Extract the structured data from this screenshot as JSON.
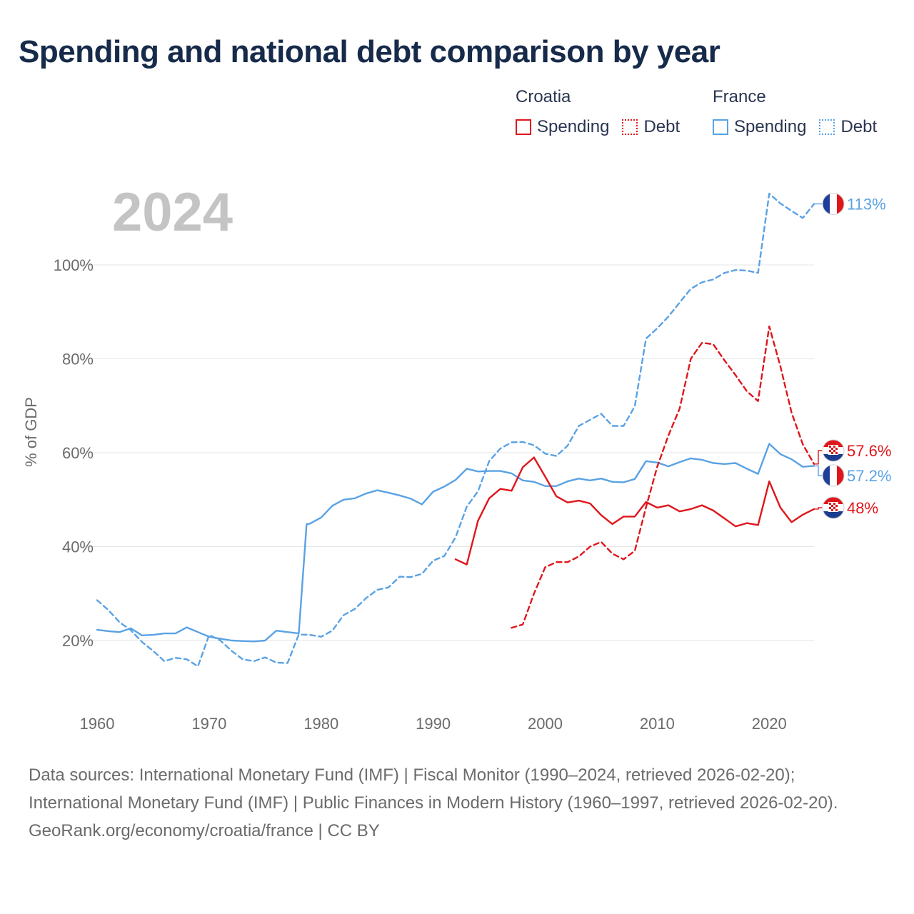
{
  "title": "Spending and national debt comparison by year",
  "legend": {
    "groups": [
      {
        "country": "Croatia",
        "spending_label": "Spending",
        "debt_label": "Debt"
      },
      {
        "country": "France",
        "spending_label": "Spending",
        "debt_label": "Debt"
      }
    ]
  },
  "year_label": "2024",
  "colors": {
    "croatia": "#e0161b",
    "france": "#5aa2e4",
    "grid": "#e6e6e6",
    "axis_text": "#6b6b6b",
    "year_watermark": "#c4c4c4",
    "title": "#162a4a"
  },
  "footer": {
    "sources": "Data sources: International Monetary Fund (IMF) | Fiscal Monitor (1990–2024, retrieved 2026-02-20); International Monetary Fund (IMF) | Public Finances in Modern History (1960–1997, retrieved 2026-02-20).",
    "credit": "GeoRank.org/economy/croatia/france | CC BY"
  },
  "chart_data": {
    "type": "line",
    "title": "Spending and national debt comparison by year",
    "xlabel": "",
    "ylabel": "% of GDP",
    "xlim": [
      1960,
      2024
    ],
    "ylim": [
      8,
      118
    ],
    "x_ticks": [
      1960,
      1970,
      1980,
      1990,
      2000,
      2010,
      2020
    ],
    "y_ticks": [
      20,
      40,
      60,
      80,
      100
    ],
    "y_tick_labels": [
      "20%",
      "40%",
      "60%",
      "80%",
      "100%"
    ],
    "grid": true,
    "series": [
      {
        "name": "France Spending",
        "country": "France",
        "metric": "Spending",
        "style": "solid",
        "color": "#5aa2e4",
        "end_label": "57.2%",
        "points": [
          [
            1960,
            22.3
          ],
          [
            1961,
            22.0
          ],
          [
            1962,
            21.8
          ],
          [
            1963,
            22.6
          ],
          [
            1964,
            21.1
          ],
          [
            1965,
            21.2
          ],
          [
            1966,
            21.5
          ],
          [
            1967,
            21.5
          ],
          [
            1968,
            22.8
          ],
          [
            1969,
            21.8
          ],
          [
            1970,
            20.8
          ],
          [
            1971,
            20.4
          ],
          [
            1972,
            20.0
          ],
          [
            1973,
            19.9
          ],
          [
            1974,
            19.8
          ],
          [
            1975,
            20.0
          ],
          [
            1976,
            22.1
          ],
          [
            1977,
            21.8
          ],
          [
            1978,
            21.5
          ],
          [
            1978.7,
            44.8
          ],
          [
            1979,
            44.9
          ],
          [
            1980,
            46.2
          ],
          [
            1981,
            48.7
          ],
          [
            1982,
            50.0
          ],
          [
            1983,
            50.3
          ],
          [
            1984,
            51.3
          ],
          [
            1985,
            52.0
          ],
          [
            1986,
            51.5
          ],
          [
            1987,
            50.9
          ],
          [
            1988,
            50.2
          ],
          [
            1989,
            49.0
          ],
          [
            1990,
            51.7
          ],
          [
            1991,
            52.8
          ],
          [
            1992,
            54.2
          ],
          [
            1993,
            56.6
          ],
          [
            1994,
            56.0
          ],
          [
            1995,
            56.1
          ],
          [
            1996,
            56.1
          ],
          [
            1997,
            55.6
          ],
          [
            1998,
            54.1
          ],
          [
            1999,
            53.8
          ],
          [
            2000,
            52.9
          ],
          [
            2001,
            52.9
          ],
          [
            2002,
            53.9
          ],
          [
            2003,
            54.5
          ],
          [
            2004,
            54.1
          ],
          [
            2005,
            54.5
          ],
          [
            2006,
            53.8
          ],
          [
            2007,
            53.7
          ],
          [
            2008,
            54.4
          ],
          [
            2009,
            58.2
          ],
          [
            2010,
            57.9
          ],
          [
            2011,
            57.1
          ],
          [
            2012,
            58.0
          ],
          [
            2013,
            58.8
          ],
          [
            2014,
            58.5
          ],
          [
            2015,
            57.8
          ],
          [
            2016,
            57.6
          ],
          [
            2017,
            57.8
          ],
          [
            2018,
            56.6
          ],
          [
            2019,
            55.5
          ],
          [
            2020,
            61.9
          ],
          [
            2021,
            59.7
          ],
          [
            2022,
            58.6
          ],
          [
            2023,
            57.0
          ],
          [
            2024,
            57.2
          ]
        ]
      },
      {
        "name": "France Debt",
        "country": "France",
        "metric": "Debt",
        "style": "dashed",
        "color": "#5aa2e4",
        "end_label": "113%",
        "points": [
          [
            1960,
            28.6
          ],
          [
            1961,
            26.5
          ],
          [
            1962,
            23.9
          ],
          [
            1963,
            22.2
          ],
          [
            1964,
            19.7
          ],
          [
            1965,
            17.8
          ],
          [
            1966,
            15.6
          ],
          [
            1967,
            16.3
          ],
          [
            1968,
            16.0
          ],
          [
            1969,
            14.5
          ],
          [
            1970,
            21.2
          ],
          [
            1971,
            20.0
          ],
          [
            1972,
            17.8
          ],
          [
            1973,
            16.0
          ],
          [
            1974,
            15.6
          ],
          [
            1975,
            16.4
          ],
          [
            1976,
            15.3
          ],
          [
            1977,
            15.2
          ],
          [
            1978,
            21.3
          ],
          [
            1979,
            21.2
          ],
          [
            1980,
            20.8
          ],
          [
            1981,
            22.1
          ],
          [
            1982,
            25.4
          ],
          [
            1983,
            26.7
          ],
          [
            1984,
            29.0
          ],
          [
            1985,
            30.8
          ],
          [
            1986,
            31.3
          ],
          [
            1987,
            33.6
          ],
          [
            1988,
            33.5
          ],
          [
            1989,
            34.2
          ],
          [
            1990,
            37.0
          ],
          [
            1991,
            38.0
          ],
          [
            1992,
            42.0
          ],
          [
            1993,
            48.5
          ],
          [
            1994,
            51.8
          ],
          [
            1995,
            58.2
          ],
          [
            1996,
            60.9
          ],
          [
            1997,
            62.2
          ],
          [
            1998,
            62.3
          ],
          [
            1999,
            61.6
          ],
          [
            2000,
            59.8
          ],
          [
            2001,
            59.3
          ],
          [
            2002,
            61.5
          ],
          [
            2003,
            65.7
          ],
          [
            2004,
            67.0
          ],
          [
            2005,
            68.3
          ],
          [
            2006,
            65.7
          ],
          [
            2007,
            65.7
          ],
          [
            2008,
            69.9
          ],
          [
            2009,
            84.3
          ],
          [
            2010,
            86.5
          ],
          [
            2011,
            89.0
          ],
          [
            2012,
            92.0
          ],
          [
            2013,
            94.9
          ],
          [
            2014,
            96.3
          ],
          [
            2015,
            96.9
          ],
          [
            2016,
            98.3
          ],
          [
            2017,
            98.9
          ],
          [
            2018,
            98.8
          ],
          [
            2019,
            98.3
          ],
          [
            2020,
            115.2
          ],
          [
            2021,
            113.1
          ],
          [
            2022,
            111.5
          ],
          [
            2023,
            110.0
          ],
          [
            2024,
            113.0
          ]
        ]
      },
      {
        "name": "Croatia Spending",
        "country": "Croatia",
        "metric": "Spending",
        "style": "solid",
        "color": "#e0161b",
        "end_label": "48%",
        "points": [
          [
            1992,
            37.3
          ],
          [
            1993,
            36.2
          ],
          [
            1994,
            45.5
          ],
          [
            1995,
            50.3
          ],
          [
            1996,
            52.3
          ],
          [
            1997,
            51.9
          ],
          [
            1998,
            56.9
          ],
          [
            1999,
            59.0
          ],
          [
            2000,
            54.9
          ],
          [
            2001,
            50.7
          ],
          [
            2002,
            49.4
          ],
          [
            2003,
            49.8
          ],
          [
            2004,
            49.2
          ],
          [
            2005,
            46.7
          ],
          [
            2006,
            44.8
          ],
          [
            2007,
            46.4
          ],
          [
            2008,
            46.4
          ],
          [
            2009,
            49.5
          ],
          [
            2010,
            48.3
          ],
          [
            2011,
            48.8
          ],
          [
            2012,
            47.5
          ],
          [
            2013,
            48.0
          ],
          [
            2014,
            48.8
          ],
          [
            2015,
            47.7
          ],
          [
            2016,
            46.0
          ],
          [
            2017,
            44.3
          ],
          [
            2018,
            45.0
          ],
          [
            2019,
            44.6
          ],
          [
            2020,
            53.9
          ],
          [
            2021,
            48.3
          ],
          [
            2022,
            45.2
          ],
          [
            2023,
            46.8
          ],
          [
            2024,
            48.0
          ]
        ]
      },
      {
        "name": "Croatia Debt",
        "country": "Croatia",
        "metric": "Debt",
        "style": "dashed",
        "color": "#e0161b",
        "end_label": "57.6%",
        "points": [
          [
            1997,
            22.7
          ],
          [
            1998,
            23.4
          ],
          [
            1999,
            30.0
          ],
          [
            2000,
            35.6
          ],
          [
            2001,
            36.7
          ],
          [
            2002,
            36.7
          ],
          [
            2003,
            37.9
          ],
          [
            2004,
            40.0
          ],
          [
            2005,
            41.0
          ],
          [
            2006,
            38.5
          ],
          [
            2007,
            37.3
          ],
          [
            2008,
            39.1
          ],
          [
            2009,
            48.4
          ],
          [
            2010,
            57.0
          ],
          [
            2011,
            63.7
          ],
          [
            2012,
            69.4
          ],
          [
            2013,
            80.0
          ],
          [
            2014,
            83.4
          ],
          [
            2015,
            83.1
          ],
          [
            2016,
            79.7
          ],
          [
            2017,
            76.5
          ],
          [
            2018,
            73.1
          ],
          [
            2019,
            71.0
          ],
          [
            2020,
            86.9
          ],
          [
            2021,
            78.4
          ],
          [
            2022,
            68.5
          ],
          [
            2023,
            61.8
          ],
          [
            2024,
            57.6
          ]
        ]
      }
    ]
  }
}
